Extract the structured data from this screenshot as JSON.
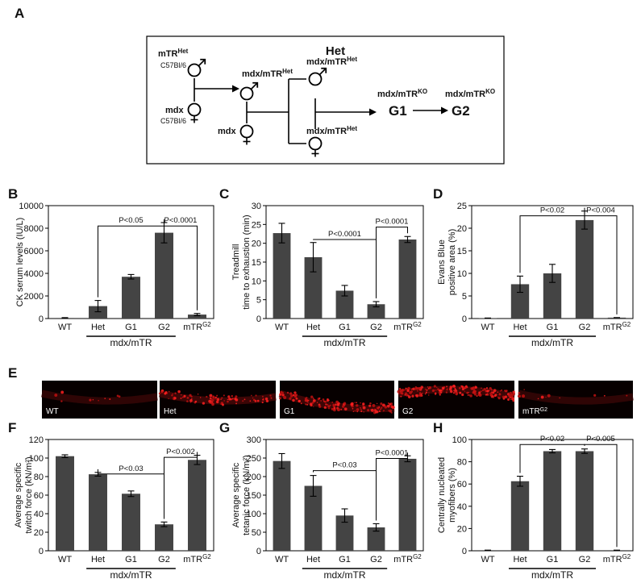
{
  "diagram": {
    "panel": "A",
    "heading": "Het",
    "nodes": [
      {
        "text": "mTR",
        "sup": "Het",
        "strain": "C57Bl/6"
      },
      {
        "text": "mdx",
        "strain": "C57Bl/6"
      },
      {
        "text": "mdx/mTR",
        "sup": "Het"
      },
      {
        "text": "mdx"
      },
      {
        "text": "mdx/mTR",
        "sup": "Het"
      },
      {
        "text": "mdx/mTR",
        "sup": "Het"
      },
      {
        "text": "mdx/mTR",
        "sup": "KO",
        "generation": "G1"
      },
      {
        "text": "mdx/mTR",
        "sup": "KO",
        "generation": "G2"
      }
    ]
  },
  "micrographs": {
    "panel": "E",
    "labels": [
      {
        "text": "WT"
      },
      {
        "text": "Het"
      },
      {
        "text": "G1"
      },
      {
        "text": "G2"
      },
      {
        "text": "mTR",
        "sup": "G2"
      }
    ]
  },
  "chart_data": [
    {
      "panel": "B",
      "type": "bar",
      "ylabel": [
        "CK serum levels (IU/L)"
      ],
      "categories": [
        "WT",
        "Het",
        "G1",
        "G2",
        "mTR"
      ],
      "category_superscripts": [
        null,
        null,
        null,
        null,
        "G2"
      ],
      "group_label": "mdx/mTR",
      "values": [
        50,
        1100,
        3700,
        7600,
        350
      ],
      "errors": [
        30,
        500,
        200,
        900,
        100
      ],
      "color": "#444444",
      "ylim": [
        0,
        10000
      ],
      "yticks": [
        0,
        2000,
        4000,
        6000,
        8000,
        10000
      ],
      "annotations": [
        "P<0.05",
        "P<0.0001"
      ]
    },
    {
      "panel": "C",
      "type": "bar",
      "ylabel": [
        "Treadmill",
        "time to exhaustion (min)"
      ],
      "categories": [
        "WT",
        "Het",
        "G1",
        "G2",
        "mTR"
      ],
      "category_superscripts": [
        null,
        null,
        null,
        null,
        "G2"
      ],
      "group_label": "mdx/mTR",
      "values": [
        22.7,
        16.3,
        7.4,
        3.8,
        21
      ],
      "errors": [
        2.6,
        3.9,
        1.4,
        0.7,
        0.8
      ],
      "color": "#444444",
      "ylim": [
        0,
        30
      ],
      "yticks": [
        0,
        5,
        10,
        15,
        20,
        25,
        30
      ],
      "annotations": [
        "P<0.0001",
        "P<0.0001"
      ]
    },
    {
      "panel": "D",
      "type": "bar",
      "ylabel": [
        "Evans Blue",
        "positive area (%)"
      ],
      "categories": [
        "WT",
        "Het",
        "G1",
        "G2",
        "mTR"
      ],
      "category_superscripts": [
        null,
        null,
        null,
        null,
        "G2"
      ],
      "group_label": "mdx/mTR",
      "values": [
        0.1,
        7.6,
        10,
        21.8,
        0.2
      ],
      "errors": [
        0,
        1.8,
        2,
        2,
        0
      ],
      "color": "#444444",
      "ylim": [
        0,
        25
      ],
      "yticks": [
        0,
        5,
        10,
        15,
        20,
        25
      ],
      "annotations": [
        "P<0.02",
        "P<0.004"
      ]
    },
    {
      "panel": "F",
      "type": "bar",
      "ylabel": [
        "Average specific",
        "twitch force (kN/m²)"
      ],
      "categories": [
        "WT",
        "Het",
        "G1",
        "G2",
        "mTR"
      ],
      "category_superscripts": [
        null,
        null,
        null,
        null,
        "G2"
      ],
      "group_label": "mdx/mTR",
      "values": [
        102,
        82.5,
        61.5,
        28.5,
        98
      ],
      "errors": [
        1.5,
        2,
        3,
        2.5,
        5
      ],
      "color": "#444444",
      "ylim": [
        0,
        120
      ],
      "yticks": [
        0,
        20,
        40,
        60,
        80,
        100,
        120
      ],
      "annotations": [
        "P<0.03",
        "P<0.002"
      ]
    },
    {
      "panel": "G",
      "type": "bar",
      "ylabel": [
        "Average specific",
        "tetanic force (kN/m²)"
      ],
      "categories": [
        "WT",
        "Het",
        "G1",
        "G2",
        "mTR"
      ],
      "category_superscripts": [
        null,
        null,
        null,
        null,
        "G2"
      ],
      "group_label": "mdx/mTR",
      "values": [
        242,
        175,
        95,
        63,
        248
      ],
      "errors": [
        20,
        28,
        18,
        10,
        8
      ],
      "color": "#444444",
      "ylim": [
        0,
        300
      ],
      "yticks": [
        0,
        50,
        100,
        150,
        200,
        250,
        300
      ],
      "annotations": [
        "P<0.03",
        "P<0.0001"
      ]
    },
    {
      "panel": "H",
      "type": "bar",
      "ylabel": [
        "Centrally nucleated",
        "myofibers (%)"
      ],
      "categories": [
        "WT",
        "Het",
        "G1",
        "G2",
        "mTR"
      ],
      "category_superscripts": [
        null,
        null,
        null,
        null,
        "G2"
      ],
      "group_label": "mdx/mTR",
      "values": [
        0.5,
        62.5,
        89.5,
        89.5,
        0.5
      ],
      "errors": [
        0,
        4.5,
        1.5,
        2,
        0
      ],
      "color": "#444444",
      "ylim": [
        0,
        100
      ],
      "yticks": [
        0,
        20,
        40,
        60,
        80,
        100
      ],
      "annotations": [
        "P<0.02",
        "P<0.005"
      ]
    }
  ]
}
